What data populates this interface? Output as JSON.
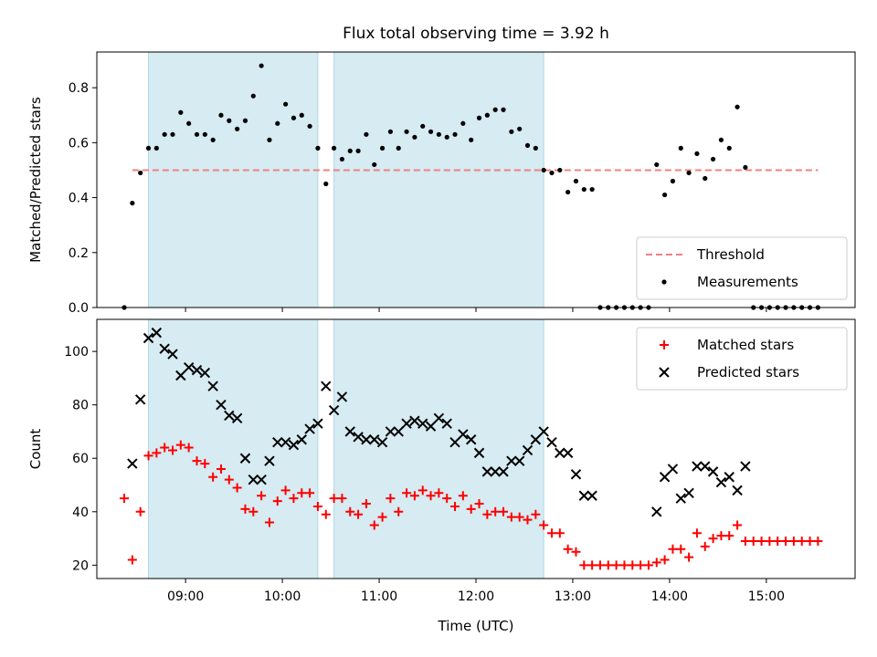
{
  "figure": {
    "title": "Flux total observing time = 3.92 h",
    "xlabel": "Time (UTC)"
  },
  "colors": {
    "shade": "#add8e6",
    "threshold": "#f08080",
    "measurements": "#000000",
    "matched": "#ff0000",
    "predicted": "#000000"
  },
  "chart_data": [
    {
      "type": "scatter",
      "ylabel": "Matched/Predicted stars",
      "xlim": [
        "08:05",
        "15:55"
      ],
      "ylim": [
        0,
        0.93
      ],
      "yticks": [
        0.0,
        0.2,
        0.4,
        0.6,
        0.8
      ],
      "xticks": [
        "09:00",
        "10:00",
        "11:00",
        "12:00",
        "13:00",
        "14:00",
        "15:00"
      ],
      "xtick_labels_shown": false,
      "shaded_intervals": [
        [
          "08:37",
          "10:22"
        ],
        [
          "10:32",
          "12:42"
        ]
      ],
      "legend": {
        "position": "lower right",
        "entries": [
          "Threshold",
          "Measurements"
        ]
      },
      "threshold": {
        "name": "Threshold",
        "value": 0.5,
        "x_range": [
          "08:27",
          "15:32"
        ],
        "style": "dashed"
      },
      "series": [
        {
          "name": "Measurements",
          "marker": "dot",
          "points": [
            [
              "08:22",
              0.0
            ],
            [
              "08:27",
              0.38
            ],
            [
              "08:32",
              0.49
            ],
            [
              "08:37",
              0.58
            ],
            [
              "08:42",
              0.58
            ],
            [
              "08:47",
              0.63
            ],
            [
              "08:52",
              0.63
            ],
            [
              "08:57",
              0.71
            ],
            [
              "09:02",
              0.67
            ],
            [
              "09:07",
              0.63
            ],
            [
              "09:12",
              0.63
            ],
            [
              "09:17",
              0.61
            ],
            [
              "09:22",
              0.7
            ],
            [
              "09:27",
              0.68
            ],
            [
              "09:32",
              0.65
            ],
            [
              "09:37",
              0.68
            ],
            [
              "09:42",
              0.77
            ],
            [
              "09:47",
              0.88
            ],
            [
              "09:52",
              0.61
            ],
            [
              "09:57",
              0.67
            ],
            [
              "10:02",
              0.74
            ],
            [
              "10:07",
              0.69
            ],
            [
              "10:12",
              0.7
            ],
            [
              "10:17",
              0.66
            ],
            [
              "10:22",
              0.58
            ],
            [
              "10:27",
              0.45
            ],
            [
              "10:32",
              0.58
            ],
            [
              "10:37",
              0.54
            ],
            [
              "10:42",
              0.57
            ],
            [
              "10:47",
              0.57
            ],
            [
              "10:52",
              0.63
            ],
            [
              "10:57",
              0.52
            ],
            [
              "11:02",
              0.58
            ],
            [
              "11:07",
              0.64
            ],
            [
              "11:12",
              0.58
            ],
            [
              "11:17",
              0.64
            ],
            [
              "11:22",
              0.62
            ],
            [
              "11:27",
              0.66
            ],
            [
              "11:32",
              0.64
            ],
            [
              "11:37",
              0.63
            ],
            [
              "11:42",
              0.62
            ],
            [
              "11:47",
              0.63
            ],
            [
              "11:52",
              0.67
            ],
            [
              "11:57",
              0.61
            ],
            [
              "12:02",
              0.69
            ],
            [
              "12:07",
              0.7
            ],
            [
              "12:12",
              0.72
            ],
            [
              "12:17",
              0.72
            ],
            [
              "12:22",
              0.64
            ],
            [
              "12:27",
              0.65
            ],
            [
              "12:32",
              0.59
            ],
            [
              "12:37",
              0.58
            ],
            [
              "12:42",
              0.5
            ],
            [
              "12:47",
              0.49
            ],
            [
              "12:52",
              0.5
            ],
            [
              "12:57",
              0.42
            ],
            [
              "13:02",
              0.46
            ],
            [
              "13:07",
              0.43
            ],
            [
              "13:12",
              0.43
            ],
            [
              "13:17",
              0.0
            ],
            [
              "13:22",
              0.0
            ],
            [
              "13:27",
              0.0
            ],
            [
              "13:32",
              0.0
            ],
            [
              "13:37",
              0.0
            ],
            [
              "13:42",
              0.0
            ],
            [
              "13:47",
              0.0
            ],
            [
              "13:52",
              0.52
            ],
            [
              "13:57",
              0.41
            ],
            [
              "14:02",
              0.46
            ],
            [
              "14:07",
              0.58
            ],
            [
              "14:12",
              0.49
            ],
            [
              "14:17",
              0.56
            ],
            [
              "14:22",
              0.47
            ],
            [
              "14:27",
              0.54
            ],
            [
              "14:32",
              0.61
            ],
            [
              "14:37",
              0.58
            ],
            [
              "14:42",
              0.73
            ],
            [
              "14:47",
              0.51
            ],
            [
              "14:52",
              0.0
            ],
            [
              "14:57",
              0.0
            ],
            [
              "15:02",
              0.0
            ],
            [
              "15:07",
              0.0
            ],
            [
              "15:12",
              0.0
            ],
            [
              "15:17",
              0.0
            ],
            [
              "15:22",
              0.0
            ],
            [
              "15:27",
              0.0
            ],
            [
              "15:32",
              0.0
            ]
          ]
        }
      ]
    },
    {
      "type": "scatter",
      "ylabel": "Count",
      "xlim": [
        "08:05",
        "15:55"
      ],
      "ylim": [
        15,
        112
      ],
      "yticks": [
        20,
        40,
        60,
        80,
        100
      ],
      "xticks": [
        "09:00",
        "10:00",
        "11:00",
        "12:00",
        "13:00",
        "14:00",
        "15:00"
      ],
      "shaded_intervals": [
        [
          "08:37",
          "10:22"
        ],
        [
          "10:32",
          "12:42"
        ]
      ],
      "legend": {
        "position": "upper right",
        "entries": [
          "Matched stars",
          "Predicted stars"
        ]
      },
      "series": [
        {
          "name": "Matched stars",
          "marker": "plus",
          "points": [
            [
              "08:22",
              45
            ],
            [
              "08:27",
              22
            ],
            [
              "08:32",
              40
            ],
            [
              "08:37",
              61
            ],
            [
              "08:42",
              62
            ],
            [
              "08:47",
              64
            ],
            [
              "08:52",
              63
            ],
            [
              "08:57",
              65
            ],
            [
              "09:02",
              64
            ],
            [
              "09:07",
              59
            ],
            [
              "09:12",
              58
            ],
            [
              "09:17",
              53
            ],
            [
              "09:22",
              56
            ],
            [
              "09:27",
              52
            ],
            [
              "09:32",
              49
            ],
            [
              "09:37",
              41
            ],
            [
              "09:42",
              40
            ],
            [
              "09:47",
              46
            ],
            [
              "09:52",
              36
            ],
            [
              "09:57",
              44
            ],
            [
              "10:02",
              48
            ],
            [
              "10:07",
              45
            ],
            [
              "10:12",
              47
            ],
            [
              "10:17",
              47
            ],
            [
              "10:22",
              42
            ],
            [
              "10:27",
              39
            ],
            [
              "10:32",
              45
            ],
            [
              "10:37",
              45
            ],
            [
              "10:42",
              40
            ],
            [
              "10:47",
              39
            ],
            [
              "10:52",
              43
            ],
            [
              "10:57",
              35
            ],
            [
              "11:02",
              38
            ],
            [
              "11:07",
              45
            ],
            [
              "11:12",
              40
            ],
            [
              "11:17",
              47
            ],
            [
              "11:22",
              46
            ],
            [
              "11:27",
              48
            ],
            [
              "11:32",
              46
            ],
            [
              "11:37",
              47
            ],
            [
              "11:42",
              45
            ],
            [
              "11:47",
              42
            ],
            [
              "11:52",
              46
            ],
            [
              "11:57",
              41
            ],
            [
              "12:02",
              43
            ],
            [
              "12:07",
              39
            ],
            [
              "12:12",
              40
            ],
            [
              "12:17",
              40
            ],
            [
              "12:22",
              38
            ],
            [
              "12:27",
              38
            ],
            [
              "12:32",
              37
            ],
            [
              "12:37",
              39
            ],
            [
              "12:42",
              35
            ],
            [
              "12:47",
              32
            ],
            [
              "12:52",
              32
            ],
            [
              "12:57",
              26
            ],
            [
              "13:02",
              25
            ],
            [
              "13:07",
              20
            ],
            [
              "13:12",
              20
            ],
            [
              "13:17",
              20
            ],
            [
              "13:22",
              20
            ],
            [
              "13:27",
              20
            ],
            [
              "13:32",
              20
            ],
            [
              "13:37",
              20
            ],
            [
              "13:42",
              20
            ],
            [
              "13:47",
              20
            ],
            [
              "13:52",
              21
            ],
            [
              "13:57",
              22
            ],
            [
              "14:02",
              26
            ],
            [
              "14:07",
              26
            ],
            [
              "14:12",
              23
            ],
            [
              "14:17",
              32
            ],
            [
              "14:22",
              27
            ],
            [
              "14:27",
              30
            ],
            [
              "14:32",
              31
            ],
            [
              "14:37",
              31
            ],
            [
              "14:42",
              35
            ],
            [
              "14:47",
              29
            ],
            [
              "14:52",
              29
            ],
            [
              "14:57",
              29
            ],
            [
              "15:02",
              29
            ],
            [
              "15:07",
              29
            ],
            [
              "15:12",
              29
            ],
            [
              "15:17",
              29
            ],
            [
              "15:22",
              29
            ],
            [
              "15:27",
              29
            ],
            [
              "15:32",
              29
            ]
          ]
        },
        {
          "name": "Predicted stars",
          "marker": "x",
          "points": [
            [
              "08:27",
              58
            ],
            [
              "08:32",
              82
            ],
            [
              "08:37",
              105
            ],
            [
              "08:42",
              107
            ],
            [
              "08:47",
              101
            ],
            [
              "08:52",
              99
            ],
            [
              "08:57",
              91
            ],
            [
              "09:02",
              94
            ],
            [
              "09:07",
              93
            ],
            [
              "09:12",
              92
            ],
            [
              "09:17",
              87
            ],
            [
              "09:22",
              80
            ],
            [
              "09:27",
              76
            ],
            [
              "09:32",
              75
            ],
            [
              "09:37",
              60
            ],
            [
              "09:42",
              52
            ],
            [
              "09:47",
              52
            ],
            [
              "09:52",
              59
            ],
            [
              "09:57",
              66
            ],
            [
              "10:02",
              66
            ],
            [
              "10:07",
              65
            ],
            [
              "10:12",
              67
            ],
            [
              "10:17",
              71
            ],
            [
              "10:22",
              73
            ],
            [
              "10:27",
              87
            ],
            [
              "10:32",
              78
            ],
            [
              "10:37",
              83
            ],
            [
              "10:42",
              70
            ],
            [
              "10:47",
              68
            ],
            [
              "10:52",
              67
            ],
            [
              "10:57",
              67
            ],
            [
              "11:02",
              66
            ],
            [
              "11:07",
              70
            ],
            [
              "11:12",
              70
            ],
            [
              "11:17",
              73
            ],
            [
              "11:22",
              74
            ],
            [
              "11:27",
              73
            ],
            [
              "11:32",
              72
            ],
            [
              "11:37",
              75
            ],
            [
              "11:42",
              73
            ],
            [
              "11:47",
              66
            ],
            [
              "11:52",
              69
            ],
            [
              "11:57",
              67
            ],
            [
              "12:02",
              62
            ],
            [
              "12:07",
              55
            ],
            [
              "12:12",
              55
            ],
            [
              "12:17",
              55
            ],
            [
              "12:22",
              59
            ],
            [
              "12:27",
              59
            ],
            [
              "12:32",
              63
            ],
            [
              "12:37",
              67
            ],
            [
              "12:42",
              70
            ],
            [
              "12:47",
              66
            ],
            [
              "12:52",
              62
            ],
            [
              "12:57",
              62
            ],
            [
              "13:02",
              54
            ],
            [
              "13:07",
              46
            ],
            [
              "13:12",
              46
            ],
            [
              "13:52",
              40
            ],
            [
              "13:57",
              53
            ],
            [
              "14:02",
              56
            ],
            [
              "14:07",
              45
            ],
            [
              "14:12",
              47
            ],
            [
              "14:17",
              57
            ],
            [
              "14:22",
              57
            ],
            [
              "14:27",
              55
            ],
            [
              "14:32",
              51
            ],
            [
              "14:37",
              53
            ],
            [
              "14:42",
              48
            ],
            [
              "14:47",
              57
            ]
          ]
        }
      ]
    }
  ]
}
